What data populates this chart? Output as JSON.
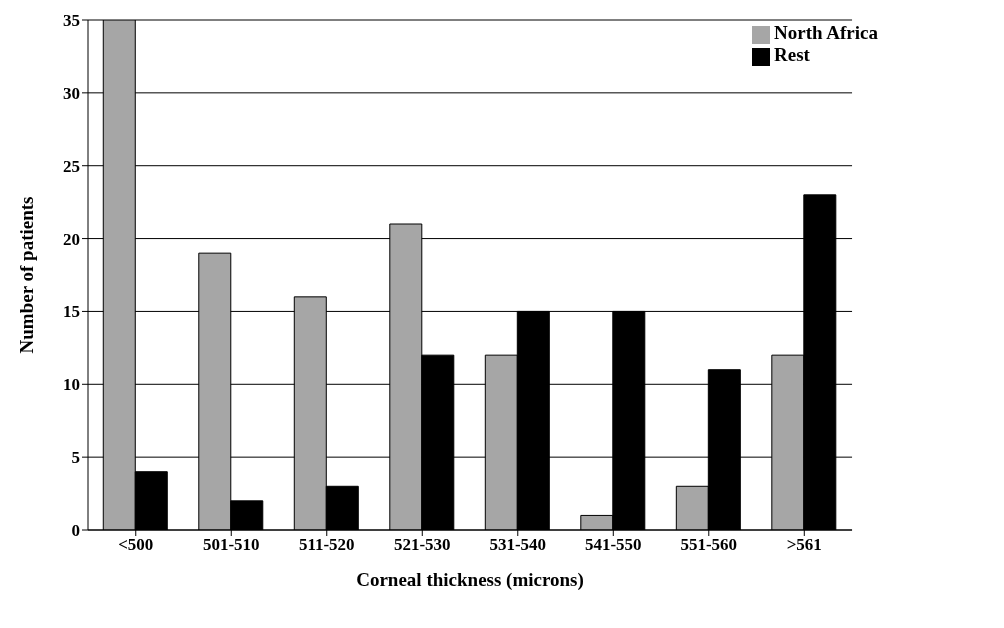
{
  "chart_data": {
    "type": "bar",
    "xlabel": "Corneal thickness (microns)",
    "ylabel": "Number of patients",
    "categories": [
      "<500",
      "501-510",
      "511-520",
      "521-530",
      "531-540",
      "541-550",
      "551-560",
      ">561"
    ],
    "series": [
      {
        "name": "North Africa",
        "color": "#a6a6a6",
        "values": [
          35,
          19,
          16,
          21,
          12,
          1,
          3,
          12
        ]
      },
      {
        "name": "Rest",
        "color": "#000000",
        "values": [
          4,
          2,
          3,
          12,
          15,
          15,
          11,
          23
        ]
      }
    ],
    "ylim": [
      0,
      35
    ],
    "yticks": [
      0,
      5,
      10,
      15,
      20,
      25,
      30,
      35
    ],
    "grid": "y",
    "legend": "top right"
  }
}
